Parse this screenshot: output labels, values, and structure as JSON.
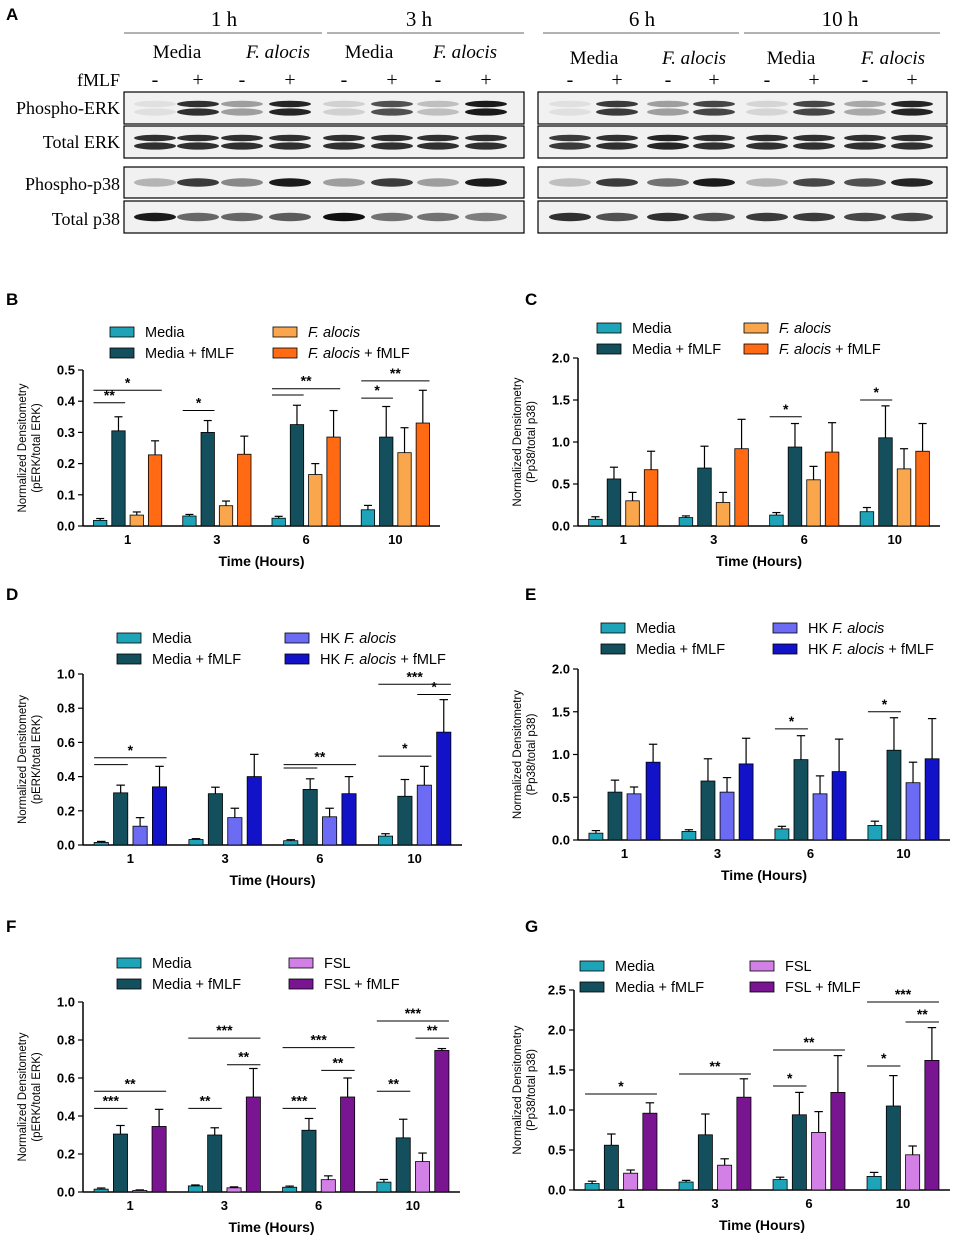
{
  "colors": {
    "media": "#1fa3b8",
    "media_fmlf": "#134f5c",
    "fa": "#f9a64c",
    "fa_fmlf": "#ff6a13",
    "hk": "#6b6cf3",
    "hk_fmlf": "#1212c8",
    "fsl": "#d27fe6",
    "fsl_fmlf": "#7a1592"
  },
  "blot": {
    "panel_letter": "A",
    "time_headers": [
      "1 h",
      "3 h",
      "6 h",
      "10 h"
    ],
    "condition_labels": [
      "Media",
      "F. alocis",
      "Media",
      "F. alocis",
      "Media",
      "F. alocis",
      "Media",
      "F. alocis"
    ],
    "fmlf_label": "fMLF",
    "fmlf_signs": [
      "-",
      "+",
      "-",
      "+",
      "-",
      "+",
      "-",
      "+",
      "-",
      "+",
      "-",
      "+",
      "-",
      "+",
      "-",
      "+"
    ],
    "row_labels": [
      "Phospho-ERK",
      "Total ERK",
      "Phospho-p38",
      "Total p38"
    ]
  },
  "chart_data": [
    {
      "id": "B",
      "panel_letter": "B",
      "type": "bar",
      "ylabel_lines": [
        "Normalized Densitometry",
        "(pERK/total ERK)"
      ],
      "xlabel": "Time (Hours)",
      "ylim": [
        0,
        0.5
      ],
      "yticks": [
        "0.0",
        "0.1",
        "0.2",
        "0.3",
        "0.4",
        "0.5"
      ],
      "categories": [
        "1",
        "3",
        "6",
        "10"
      ],
      "series": [
        {
          "name": "Media",
          "color_key": "media",
          "values": [
            0.018,
            0.032,
            0.025,
            0.052
          ],
          "errors": [
            0.006,
            0.005,
            0.006,
            0.014
          ]
        },
        {
          "name": "Media + fMLF",
          "color_key": "media_fmlf",
          "values": [
            0.305,
            0.3,
            0.325,
            0.285
          ],
          "errors": [
            0.045,
            0.038,
            0.062,
            0.098
          ]
        },
        {
          "name": "F. alocis",
          "color_key": "fa",
          "values": [
            0.035,
            0.065,
            0.165,
            0.235
          ],
          "errors": [
            0.01,
            0.015,
            0.035,
            0.08
          ]
        },
        {
          "name": "F. alocis + fMLF",
          "color_key": "fa_fmlf",
          "values": [
            0.228,
            0.23,
            0.285,
            0.33
          ],
          "errors": [
            0.045,
            0.058,
            0.085,
            0.105
          ]
        }
      ],
      "legend": [
        {
          "text": "Media",
          "italic_part": "",
          "color_key": "media"
        },
        {
          "text": "Media + fMLF",
          "italic_part": "",
          "color_key": "media_fmlf"
        },
        {
          "text": "F. alocis",
          "italic_part": "F. alocis",
          "color_key": "fa"
        },
        {
          "text": "F. alocis + fMLF",
          "italic_part": "F. alocis",
          "color_key": "fa_fmlf"
        }
      ],
      "annotations": [
        {
          "cat": 0,
          "a": 0,
          "b": 1,
          "y": 0.395,
          "label": "**"
        },
        {
          "cat": 0,
          "a": 0,
          "b": 3,
          "y": 0.435,
          "label": "*"
        },
        {
          "cat": 1,
          "a": 0,
          "b": 1,
          "y": 0.37,
          "label": "*"
        },
        {
          "cat": 2,
          "a": 0,
          "b": 1,
          "y": 0.42,
          "label": ""
        },
        {
          "cat": 2,
          "a": 0,
          "b": 3,
          "y": 0.44,
          "label": "**"
        },
        {
          "cat": 3,
          "a": 0,
          "b": 1,
          "y": 0.41,
          "label": "*"
        },
        {
          "cat": 3,
          "a": 0,
          "b": 3,
          "y": 0.465,
          "label": "**"
        }
      ]
    },
    {
      "id": "C",
      "panel_letter": "C",
      "type": "bar",
      "ylabel_lines": [
        "Normalized Densitometry",
        "(Pp38/total p38)"
      ],
      "xlabel": "Time (Hours)",
      "ylim": [
        0,
        2.0
      ],
      "yticks": [
        "0.0",
        "0.5",
        "1.0",
        "1.5",
        "2.0"
      ],
      "categories": [
        "1",
        "3",
        "6",
        "10"
      ],
      "series": [
        {
          "name": "Media",
          "color_key": "media",
          "values": [
            0.08,
            0.1,
            0.13,
            0.17
          ],
          "errors": [
            0.03,
            0.02,
            0.03,
            0.05
          ]
        },
        {
          "name": "Media + fMLF",
          "color_key": "media_fmlf",
          "values": [
            0.56,
            0.69,
            0.94,
            1.05
          ],
          "errors": [
            0.14,
            0.26,
            0.28,
            0.38
          ]
        },
        {
          "name": "F. alocis",
          "color_key": "fa",
          "values": [
            0.3,
            0.28,
            0.55,
            0.68
          ],
          "errors": [
            0.1,
            0.12,
            0.16,
            0.24
          ]
        },
        {
          "name": "F. alocis + fMLF",
          "color_key": "fa_fmlf",
          "values": [
            0.67,
            0.92,
            0.88,
            0.89
          ],
          "errors": [
            0.22,
            0.35,
            0.35,
            0.33
          ]
        }
      ],
      "legend": [
        {
          "text": "Media",
          "italic_part": "",
          "color_key": "media"
        },
        {
          "text": "Media + fMLF",
          "italic_part": "",
          "color_key": "media_fmlf"
        },
        {
          "text": "F. alocis",
          "italic_part": "F. alocis",
          "color_key": "fa"
        },
        {
          "text": "F. alocis + fMLF",
          "italic_part": "F. alocis",
          "color_key": "fa_fmlf"
        }
      ],
      "annotations": [
        {
          "cat": 2,
          "a": 0,
          "b": 1,
          "y": 1.3,
          "label": "*"
        },
        {
          "cat": 3,
          "a": 0,
          "b": 1,
          "y": 1.5,
          "label": "*"
        }
      ]
    },
    {
      "id": "D",
      "panel_letter": "D",
      "type": "bar",
      "ylabel_lines": [
        "Normalized Densitometry",
        "(pERK/total ERK)"
      ],
      "xlabel": "Time (Hours)",
      "ylim": [
        0,
        1.0
      ],
      "yticks": [
        "0.0",
        "0.2",
        "0.4",
        "0.6",
        "0.8",
        "1.0"
      ],
      "categories": [
        "1",
        "3",
        "6",
        "10"
      ],
      "series": [
        {
          "name": "Media",
          "color_key": "media",
          "values": [
            0.015,
            0.032,
            0.025,
            0.052
          ],
          "errors": [
            0.006,
            0.005,
            0.006,
            0.014
          ]
        },
        {
          "name": "Media + fMLF",
          "color_key": "media_fmlf",
          "values": [
            0.305,
            0.3,
            0.325,
            0.285
          ],
          "errors": [
            0.045,
            0.038,
            0.062,
            0.098
          ]
        },
        {
          "name": "HK F. alocis",
          "color_key": "hk",
          "values": [
            0.11,
            0.16,
            0.165,
            0.35
          ],
          "errors": [
            0.05,
            0.055,
            0.05,
            0.11
          ]
        },
        {
          "name": "HK F. alocis + fMLF",
          "color_key": "hk_fmlf",
          "values": [
            0.34,
            0.4,
            0.3,
            0.66
          ],
          "errors": [
            0.12,
            0.13,
            0.1,
            0.19
          ]
        }
      ],
      "legend": [
        {
          "text": "Media",
          "italic_part": "",
          "color_key": "media"
        },
        {
          "text": "Media + fMLF",
          "italic_part": "",
          "color_key": "media_fmlf"
        },
        {
          "text": "HK F. alocis",
          "italic_part": "F. alocis",
          "color_key": "hk"
        },
        {
          "text": "HK F. alocis + fMLF",
          "italic_part": "F. alocis",
          "color_key": "hk_fmlf"
        }
      ],
      "annotations": [
        {
          "cat": 0,
          "a": 0,
          "b": 1,
          "y": 0.47,
          "label": ""
        },
        {
          "cat": 0,
          "a": 0,
          "b": 3,
          "y": 0.51,
          "label": "*"
        },
        {
          "cat": 2,
          "a": 0,
          "b": 1,
          "y": 0.45,
          "label": ""
        },
        {
          "cat": 2,
          "a": 0,
          "b": 3,
          "y": 0.47,
          "label": "**"
        },
        {
          "cat": 3,
          "a": 0,
          "b": 2,
          "y": 0.52,
          "label": "*"
        },
        {
          "cat": 3,
          "a": 2,
          "b": 3,
          "y": 0.88,
          "label": "*"
        },
        {
          "cat": 3,
          "a": 0,
          "b": 3,
          "y": 0.94,
          "label": "***"
        }
      ]
    },
    {
      "id": "E",
      "panel_letter": "E",
      "type": "bar",
      "ylabel_lines": [
        "Normalized Densitometry",
        "(Pp38/total p38)"
      ],
      "xlabel": "Time (Hours)",
      "ylim": [
        0,
        2.0
      ],
      "yticks": [
        "0.0",
        "0.5",
        "1.0",
        "1.5",
        "2.0"
      ],
      "categories": [
        "1",
        "3",
        "6",
        "10"
      ],
      "series": [
        {
          "name": "Media",
          "color_key": "media",
          "values": [
            0.08,
            0.1,
            0.13,
            0.17
          ],
          "errors": [
            0.03,
            0.02,
            0.03,
            0.05
          ]
        },
        {
          "name": "Media + fMLF",
          "color_key": "media_fmlf",
          "values": [
            0.56,
            0.69,
            0.94,
            1.05
          ],
          "errors": [
            0.14,
            0.26,
            0.28,
            0.38
          ]
        },
        {
          "name": "HK F. alocis",
          "color_key": "hk",
          "values": [
            0.54,
            0.56,
            0.54,
            0.67
          ],
          "errors": [
            0.08,
            0.17,
            0.21,
            0.24
          ]
        },
        {
          "name": "HK F. alocis + fMLF",
          "color_key": "hk_fmlf",
          "values": [
            0.91,
            0.89,
            0.8,
            0.95
          ],
          "errors": [
            0.21,
            0.3,
            0.38,
            0.47
          ]
        }
      ],
      "legend": [
        {
          "text": "Media",
          "italic_part": "",
          "color_key": "media"
        },
        {
          "text": "Media + fMLF",
          "italic_part": "",
          "color_key": "media_fmlf"
        },
        {
          "text": "HK F. alocis",
          "italic_part": "F. alocis",
          "color_key": "hk"
        },
        {
          "text": "HK F. alocis + fMLF",
          "italic_part": "F. alocis",
          "color_key": "hk_fmlf"
        }
      ],
      "annotations": [
        {
          "cat": 2,
          "a": 0,
          "b": 1,
          "y": 1.3,
          "label": "*"
        },
        {
          "cat": 3,
          "a": 0,
          "b": 1,
          "y": 1.5,
          "label": "*"
        }
      ]
    },
    {
      "id": "F",
      "panel_letter": "F",
      "type": "bar",
      "ylabel_lines": [
        "Normalized Densitometry",
        "(pERK/total ERK)"
      ],
      "xlabel": "Time (Hours)",
      "ylim": [
        0,
        1.0
      ],
      "yticks": [
        "0.0",
        "0.2",
        "0.4",
        "0.6",
        "0.8",
        "1.0"
      ],
      "categories": [
        "1",
        "3",
        "6",
        "10"
      ],
      "series": [
        {
          "name": "Media",
          "color_key": "media",
          "values": [
            0.015,
            0.032,
            0.025,
            0.052
          ],
          "errors": [
            0.006,
            0.005,
            0.006,
            0.014
          ]
        },
        {
          "name": "Media + fMLF",
          "color_key": "media_fmlf",
          "values": [
            0.305,
            0.3,
            0.325,
            0.285
          ],
          "errors": [
            0.045,
            0.038,
            0.062,
            0.098
          ]
        },
        {
          "name": "FSL",
          "color_key": "fsl",
          "values": [
            0.008,
            0.022,
            0.065,
            0.16
          ],
          "errors": [
            0.003,
            0.005,
            0.02,
            0.045
          ]
        },
        {
          "name": "FSL + fMLF",
          "color_key": "fsl_fmlf",
          "values": [
            0.345,
            0.5,
            0.5,
            0.745
          ],
          "errors": [
            0.09,
            0.15,
            0.1,
            0.01
          ]
        }
      ],
      "legend": [
        {
          "text": "Media",
          "italic_part": "",
          "color_key": "media"
        },
        {
          "text": "Media + fMLF",
          "italic_part": "",
          "color_key": "media_fmlf"
        },
        {
          "text": "FSL",
          "italic_part": "",
          "color_key": "fsl"
        },
        {
          "text": "FSL + fMLF",
          "italic_part": "",
          "color_key": "fsl_fmlf"
        }
      ],
      "annotations": [
        {
          "cat": 0,
          "a": 0,
          "b": 1,
          "y": 0.44,
          "label": "***"
        },
        {
          "cat": 0,
          "a": 0,
          "b": 3,
          "y": 0.53,
          "label": "**"
        },
        {
          "cat": 1,
          "a": 0,
          "b": 1,
          "y": 0.44,
          "label": "**"
        },
        {
          "cat": 1,
          "a": 2,
          "b": 3,
          "y": 0.67,
          "label": "**"
        },
        {
          "cat": 1,
          "a": 0,
          "b": 3,
          "y": 0.81,
          "label": "***"
        },
        {
          "cat": 2,
          "a": 0,
          "b": 1,
          "y": 0.44,
          "label": "***"
        },
        {
          "cat": 2,
          "a": 2,
          "b": 3,
          "y": 0.64,
          "label": "**"
        },
        {
          "cat": 2,
          "a": 0,
          "b": 3,
          "y": 0.76,
          "label": "***"
        },
        {
          "cat": 3,
          "a": 0,
          "b": 1,
          "y": 0.53,
          "label": "**"
        },
        {
          "cat": 3,
          "a": 2,
          "b": 3,
          "y": 0.81,
          "label": "**"
        },
        {
          "cat": 3,
          "a": 0,
          "b": 3,
          "y": 0.9,
          "label": "***"
        }
      ]
    },
    {
      "id": "G",
      "panel_letter": "G",
      "type": "bar",
      "ylabel_lines": [
        "Normalized Densitometry",
        "(Pp38/total p38)"
      ],
      "xlabel": "Time (Hours)",
      "ylim": [
        0,
        2.5
      ],
      "yticks": [
        "0.0",
        "0.5",
        "1.0",
        "1.5",
        "2.0",
        "2.5"
      ],
      "categories": [
        "1",
        "3",
        "6",
        "10"
      ],
      "series": [
        {
          "name": "Media",
          "color_key": "media",
          "values": [
            0.08,
            0.1,
            0.13,
            0.17
          ],
          "errors": [
            0.03,
            0.02,
            0.03,
            0.05
          ]
        },
        {
          "name": "Media + fMLF",
          "color_key": "media_fmlf",
          "values": [
            0.56,
            0.69,
            0.94,
            1.05
          ],
          "errors": [
            0.14,
            0.26,
            0.28,
            0.38
          ]
        },
        {
          "name": "FSL",
          "color_key": "fsl",
          "values": [
            0.21,
            0.31,
            0.72,
            0.44
          ],
          "errors": [
            0.04,
            0.08,
            0.26,
            0.11
          ]
        },
        {
          "name": "FSL + fMLF",
          "color_key": "fsl_fmlf",
          "values": [
            0.96,
            1.16,
            1.22,
            1.62
          ],
          "errors": [
            0.13,
            0.23,
            0.46,
            0.41
          ]
        }
      ],
      "legend": [
        {
          "text": "Media",
          "italic_part": "",
          "color_key": "media"
        },
        {
          "text": "Media + fMLF",
          "italic_part": "",
          "color_key": "media_fmlf"
        },
        {
          "text": "FSL",
          "italic_part": "",
          "color_key": "fsl"
        },
        {
          "text": "FSL + fMLF",
          "italic_part": "",
          "color_key": "fsl_fmlf"
        }
      ],
      "annotations": [
        {
          "cat": 0,
          "a": 0,
          "b": 3,
          "y": 1.2,
          "label": "*"
        },
        {
          "cat": 1,
          "a": 0,
          "b": 3,
          "y": 1.45,
          "label": "**"
        },
        {
          "cat": 2,
          "a": 0,
          "b": 1,
          "y": 1.3,
          "label": "*"
        },
        {
          "cat": 2,
          "a": 0,
          "b": 3,
          "y": 1.75,
          "label": "**"
        },
        {
          "cat": 3,
          "a": 0,
          "b": 1,
          "y": 1.55,
          "label": "*"
        },
        {
          "cat": 3,
          "a": 2,
          "b": 3,
          "y": 2.1,
          "label": "**"
        },
        {
          "cat": 3,
          "a": 0,
          "b": 3,
          "y": 2.35,
          "label": "***"
        }
      ]
    }
  ]
}
